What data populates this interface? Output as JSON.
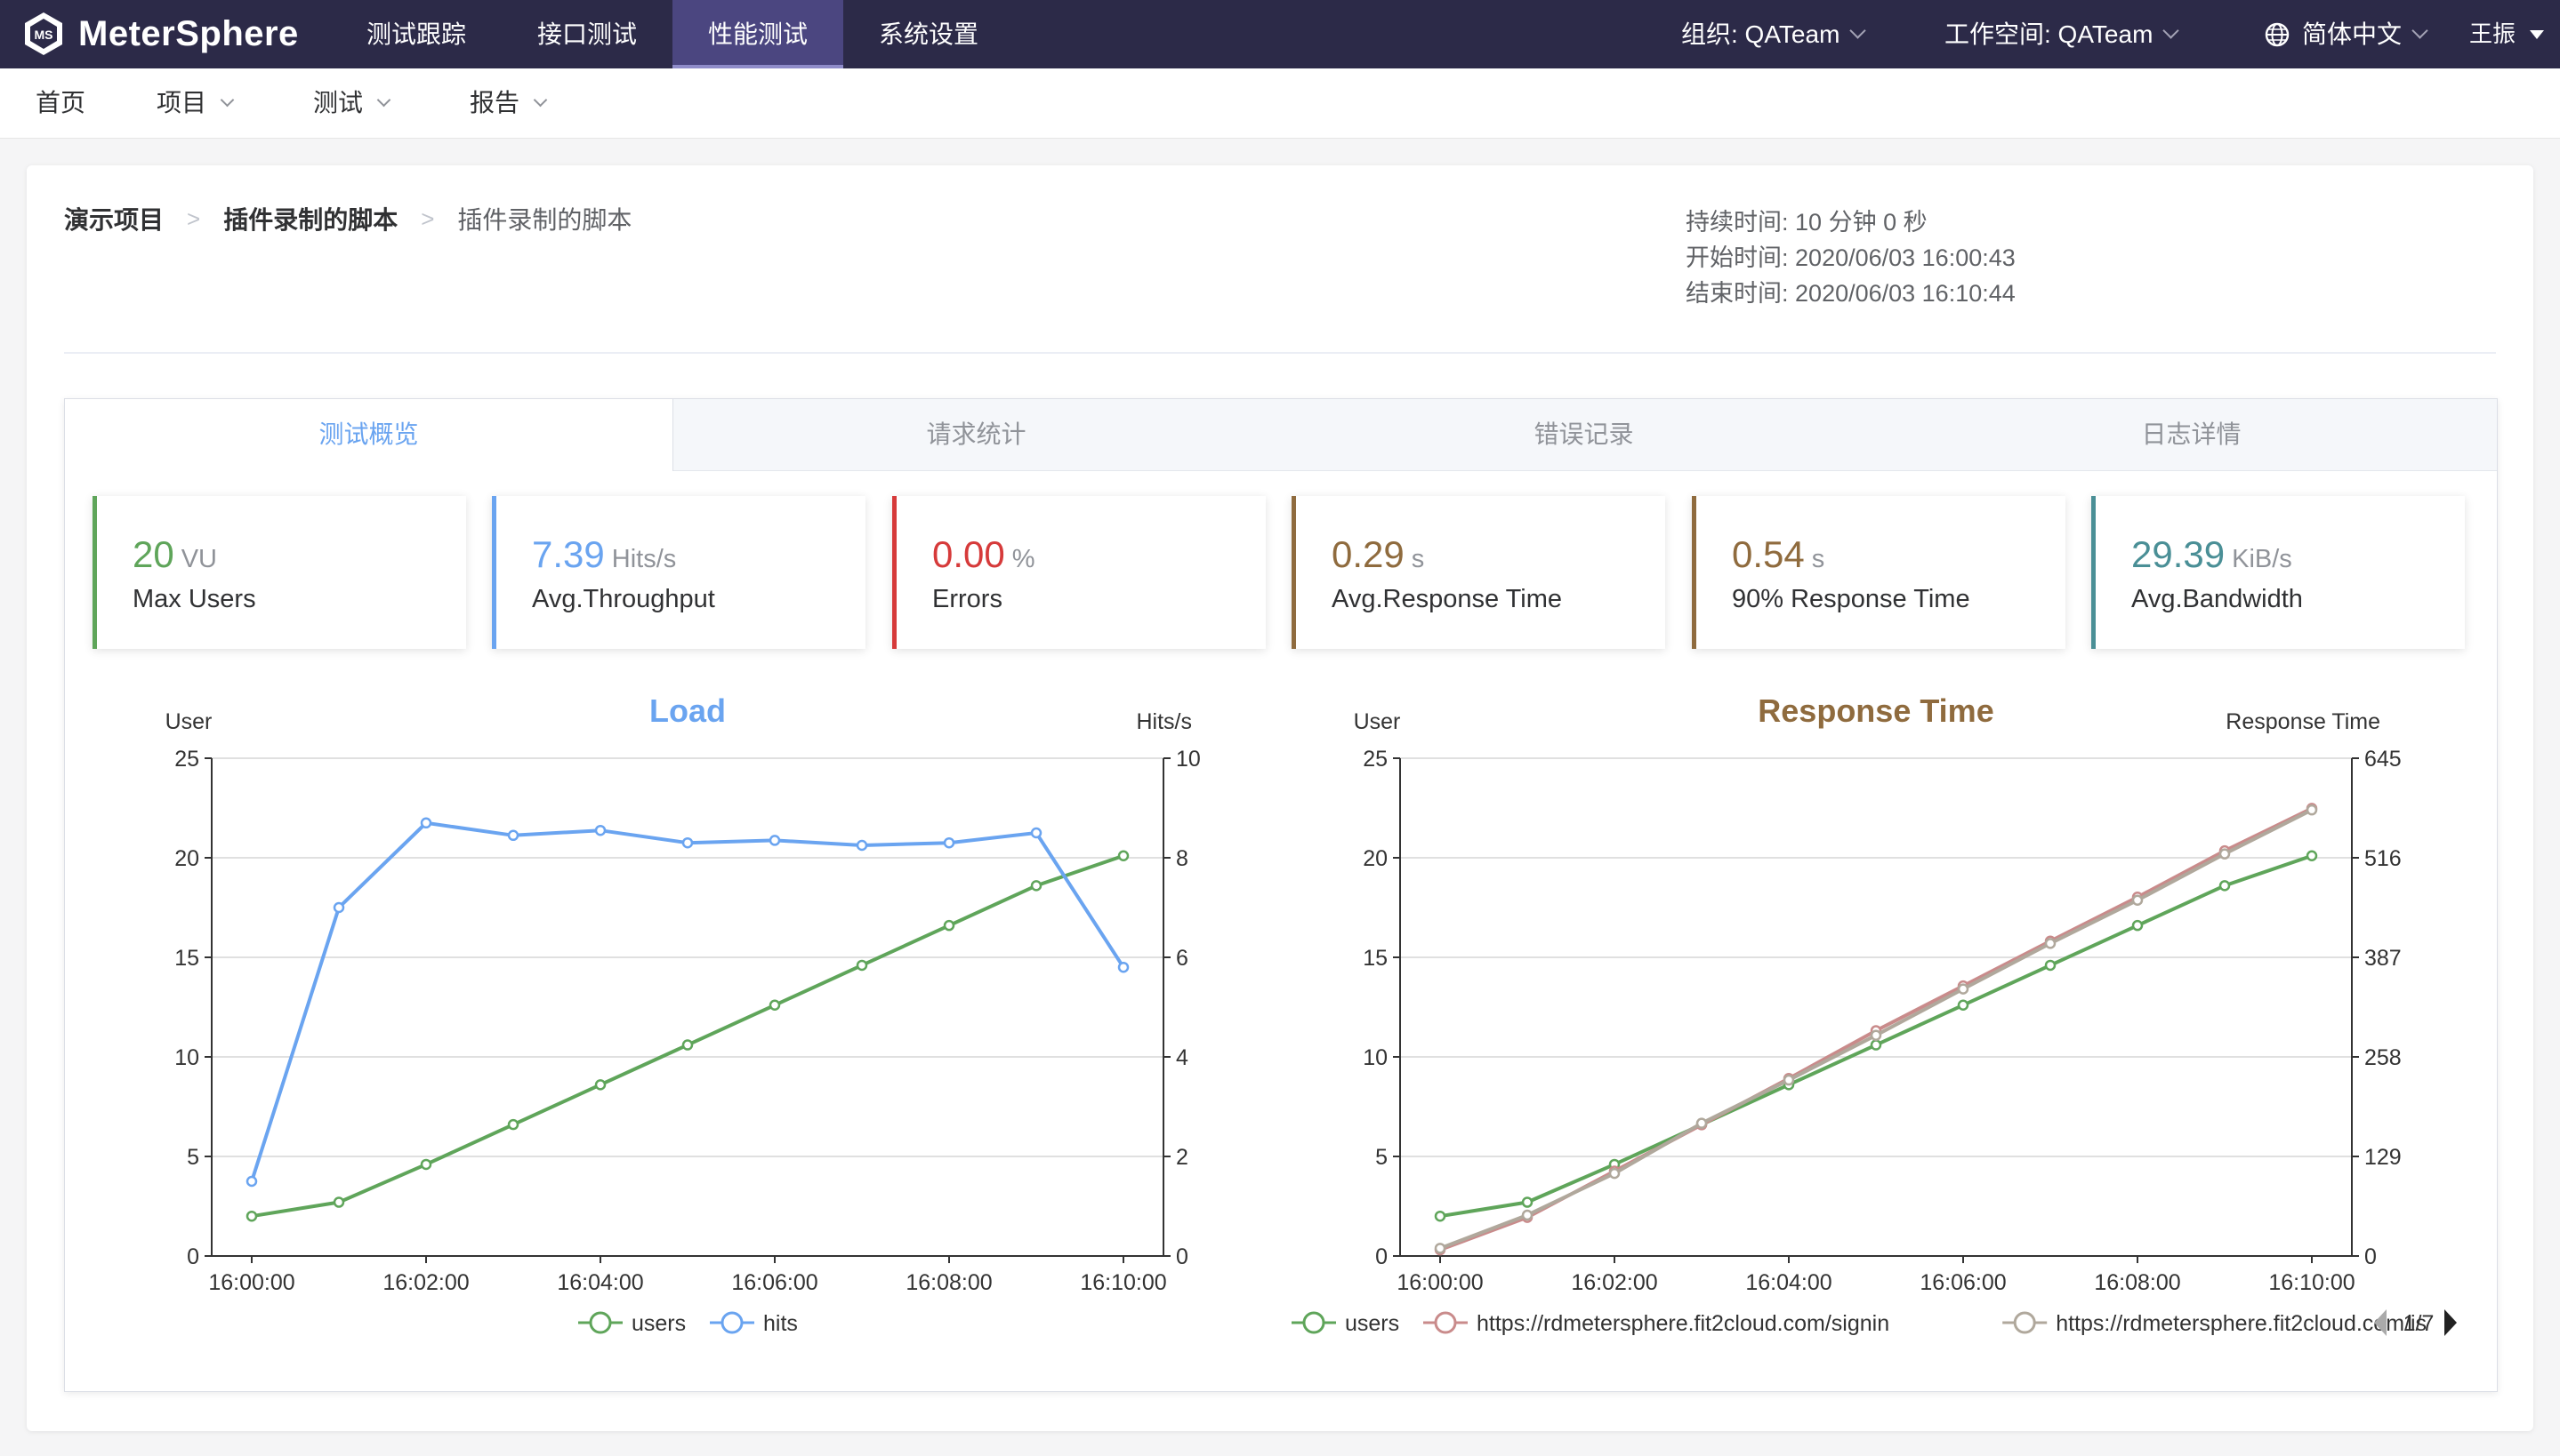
{
  "header": {
    "brand": "MeterSphere",
    "nav": [
      "测试跟踪",
      "接口测试",
      "性能测试",
      "系统设置"
    ],
    "active_nav": "性能测试",
    "org": "组织: QATeam",
    "workspace": "工作空间: QATeam",
    "language": "简体中文",
    "user": "王振"
  },
  "subnav": {
    "home": "首页",
    "project": "项目",
    "test": "测试",
    "report": "报告"
  },
  "breadcrumb": {
    "project": "演示项目",
    "test": "插件录制的脚本",
    "current": "插件录制的脚本"
  },
  "times": {
    "duration_label": "持续时间:",
    "duration": "10 分钟 0 秒",
    "start_label": "开始时间:",
    "start": "2020/06/03 16:00:43",
    "end_label": "结束时间:",
    "end": "2020/06/03 16:10:44"
  },
  "tabs": [
    "测试概览",
    "请求统计",
    "错误记录",
    "日志详情"
  ],
  "metrics": [
    {
      "value": "20",
      "unit": "VU",
      "label": "Max Users",
      "color": "#5fa55a"
    },
    {
      "value": "7.39",
      "unit": "Hits/s",
      "label": "Avg.Throughput",
      "color": "#6aa4f0"
    },
    {
      "value": "0.00",
      "unit": "%",
      "label": "Errors",
      "color": "#d63a3a"
    },
    {
      "value": "0.29",
      "unit": "s",
      "label": "Avg.Response Time",
      "color": "#8f6b3e"
    },
    {
      "value": "0.54",
      "unit": "s",
      "label": "90% Response Time",
      "color": "#8f6b3e"
    },
    {
      "value": "29.39",
      "unit": "KiB/s",
      "label": "Avg.Bandwidth",
      "color": "#4a8f96"
    }
  ],
  "chart_data": [
    {
      "type": "line",
      "title": "Load",
      "title_color": "#6aa4f0",
      "ylabel": "User",
      "y2label": "Hits/s",
      "x": [
        "16:00:00",
        "16:01:00",
        "16:02:00",
        "16:03:00",
        "16:04:00",
        "16:05:00",
        "16:06:00",
        "16:07:00",
        "16:08:00",
        "16:09:00",
        "16:10:00"
      ],
      "xticks": [
        "16:00:00",
        "16:02:00",
        "16:04:00",
        "16:06:00",
        "16:08:00",
        "16:10:00"
      ],
      "ylim": [
        0,
        25
      ],
      "yticks": [
        0,
        5,
        10,
        15,
        20,
        25
      ],
      "y2lim": [
        0,
        10
      ],
      "y2ticks": [
        0,
        2,
        4,
        6,
        8,
        10
      ],
      "series": [
        {
          "name": "users",
          "axis": "left",
          "color": "#5fa55a",
          "values": [
            2,
            2.7,
            4.6,
            6.6,
            8.6,
            10.6,
            12.6,
            14.6,
            16.6,
            18.6,
            20.1
          ]
        },
        {
          "name": "hits",
          "axis": "right",
          "color": "#6aa4f0",
          "values": [
            1.5,
            7.0,
            8.7,
            8.45,
            8.55,
            8.3,
            8.35,
            8.25,
            8.3,
            8.5,
            5.8
          ]
        }
      ],
      "legend": {
        "position": "bottom",
        "paging": ""
      }
    },
    {
      "type": "line",
      "title": "Response Time",
      "title_color": "#8f6b3e",
      "ylabel": "User",
      "y2label": "Response Time",
      "x": [
        "16:00:00",
        "16:01:00",
        "16:02:00",
        "16:03:00",
        "16:04:00",
        "16:05:00",
        "16:06:00",
        "16:07:00",
        "16:08:00",
        "16:09:00",
        "16:10:00"
      ],
      "xticks": [
        "16:00:00",
        "16:02:00",
        "16:04:00",
        "16:06:00",
        "16:08:00",
        "16:10:00"
      ],
      "ylim": [
        0,
        25
      ],
      "yticks": [
        0,
        5,
        10,
        15,
        20,
        25
      ],
      "y2lim": [
        0,
        645
      ],
      "y2ticks": [
        0,
        129,
        258,
        387,
        516,
        645
      ],
      "series": [
        {
          "name": "users",
          "axis": "left",
          "color": "#5fa55a",
          "values": [
            2,
            2.7,
            4.6,
            6.6,
            8.6,
            10.6,
            12.6,
            14.6,
            16.6,
            18.6,
            20.1
          ]
        },
        {
          "name": "https://rdmetersphere.fit2cloud.com/signin",
          "axis": "right",
          "color": "#c98b8b",
          "values": [
            8,
            50,
            110,
            170,
            230,
            292,
            350,
            408,
            465,
            525,
            580
          ]
        },
        {
          "name": "https://rdmetersphere.fit2cloud.com/is",
          "axis": "right",
          "color": "#b0a89c",
          "values": [
            10,
            53,
            107,
            172,
            228,
            286,
            346,
            405,
            461,
            521,
            578
          ]
        }
      ],
      "legend": {
        "position": "bottom",
        "paging": "1/7"
      }
    }
  ]
}
